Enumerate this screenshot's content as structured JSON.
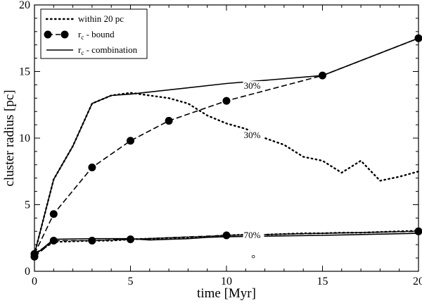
{
  "chart_data": {
    "type": "line",
    "xlabel": "time [Myr]",
    "ylabel": "cluster radius [pc]",
    "xlim": [
      0,
      20
    ],
    "ylim": [
      0,
      20
    ],
    "xticks": [
      0,
      5,
      10,
      15,
      20
    ],
    "yticks": [
      0,
      5,
      10,
      15,
      20
    ],
    "grid": false,
    "legend_position": "top-left",
    "series": [
      {
        "name": "within 20 pc",
        "style": "dotted",
        "group": "30%",
        "x": [
          0,
          1,
          2,
          3,
          4,
          5,
          6,
          7,
          8,
          9,
          10,
          11,
          12,
          13,
          14,
          15,
          16,
          17,
          18,
          19,
          20
        ],
        "y": [
          1.3,
          6.9,
          9.4,
          12.6,
          13.2,
          13.4,
          13.2,
          13.0,
          12.6,
          11.7,
          11.1,
          10.7,
          10.0,
          9.5,
          8.6,
          8.3,
          7.4,
          8.3,
          6.8,
          7.1,
          7.5
        ]
      },
      {
        "name": "r_c - bound",
        "style": "dashed-markers",
        "group": "30%",
        "x": [
          0,
          1,
          3,
          5,
          7,
          10,
          15,
          20
        ],
        "y": [
          1.3,
          4.3,
          7.8,
          9.8,
          11.3,
          12.8,
          14.7,
          17.5
        ]
      },
      {
        "name": "r_c - combination",
        "style": "solid",
        "group": "30%",
        "x": [
          0,
          1,
          2,
          3,
          4,
          5,
          10,
          15,
          20
        ],
        "y": [
          1.3,
          6.9,
          9.4,
          12.6,
          13.2,
          13.3,
          14.1,
          14.7,
          17.5
        ]
      },
      {
        "name": "within 20 pc",
        "style": "dotted",
        "group": "70%",
        "x": [
          0,
          1,
          2,
          3,
          4,
          5,
          6,
          7,
          8,
          9,
          10,
          11,
          12,
          13,
          14,
          15,
          16,
          17,
          18,
          19,
          20
        ],
        "y": [
          1.3,
          2.2,
          2.25,
          2.3,
          2.3,
          2.4,
          2.45,
          2.5,
          2.55,
          2.6,
          2.7,
          2.75,
          2.75,
          2.8,
          2.85,
          2.85,
          2.9,
          2.9,
          2.95,
          3.0,
          3.05
        ]
      },
      {
        "name": "r_c - bound",
        "style": "dashed-markers",
        "group": "70%",
        "x": [
          0,
          1,
          3,
          5,
          10,
          20
        ],
        "y": [
          1.1,
          2.3,
          2.3,
          2.4,
          2.7,
          3.0
        ]
      },
      {
        "name": "r_c - combination",
        "style": "solid",
        "group": "70%",
        "x": [
          0,
          1,
          3,
          5,
          6,
          7,
          8,
          9,
          10,
          15,
          20
        ],
        "y": [
          1.2,
          2.4,
          2.45,
          2.45,
          2.35,
          2.4,
          2.45,
          2.55,
          2.6,
          2.7,
          2.85
        ]
      }
    ],
    "legend": [
      {
        "label": "within 20 pc",
        "style": "dotted"
      },
      {
        "label_main": "r",
        "label_sub": "c",
        "label_rest": " - bound",
        "style": "dashed-markers"
      },
      {
        "label_main": "r",
        "label_sub": "c",
        "label_rest": " - combination",
        "style": "solid"
      }
    ],
    "annotations": [
      {
        "text": "30%",
        "x": 10.9,
        "y": 13.7
      },
      {
        "text": "30%",
        "x": 10.9,
        "y": 10.0
      },
      {
        "text": "70%",
        "x": 10.9,
        "y": 2.5
      }
    ],
    "stray_marker": {
      "x": 11.4,
      "y": 1.1
    }
  }
}
